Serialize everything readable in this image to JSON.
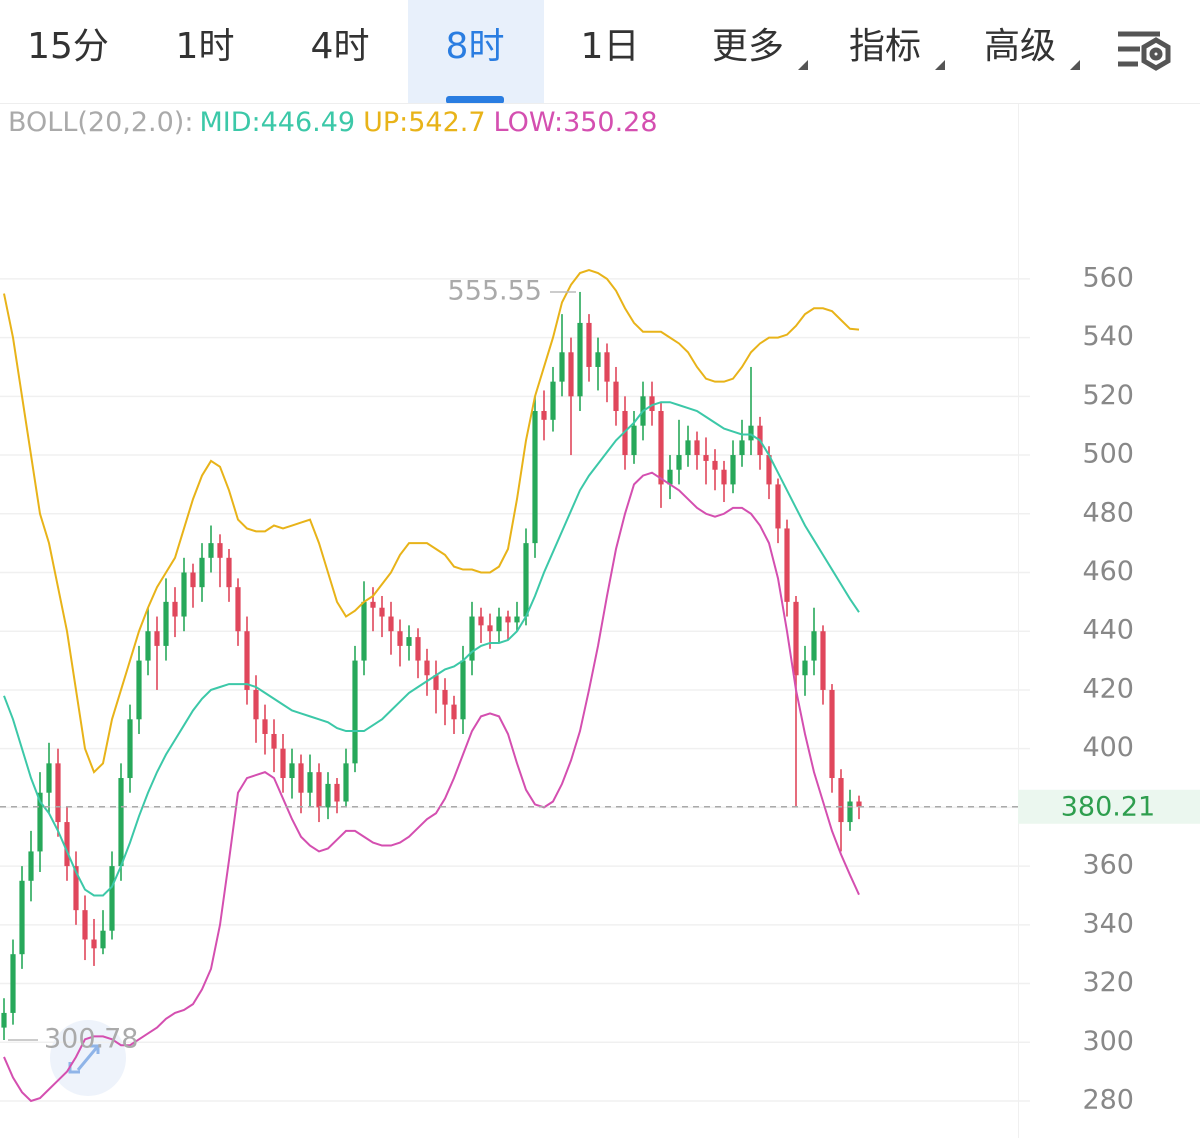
{
  "tabs": [
    "15分",
    "1时",
    "4时",
    "8时",
    "1日",
    "更多",
    "指标",
    "高级"
  ],
  "selected_tab": 3,
  "chart_data": {
    "type": "candlestick",
    "indicator": "BOLL(20,2.0):",
    "up_color": "#27a85a",
    "down_color": "#e0475c",
    "ylim": [
      267.4,
      619.9
    ],
    "yticks": [
      280,
      300,
      320,
      340,
      360,
      380,
      400,
      420,
      440,
      460,
      480,
      500,
      520,
      540,
      560
    ],
    "grid": true,
    "candles": [
      [
        305,
        315,
        300.78,
        310
      ],
      [
        310,
        335,
        306,
        330
      ],
      [
        330,
        360,
        325,
        355
      ],
      [
        355,
        372,
        348,
        365
      ],
      [
        365,
        392,
        358,
        385
      ],
      [
        385,
        402,
        378,
        395
      ],
      [
        395,
        400,
        370,
        375
      ],
      [
        375,
        380,
        355,
        360
      ],
      [
        360,
        365,
        340,
        345
      ],
      [
        345,
        350,
        328,
        335
      ],
      [
        335,
        342,
        326,
        332
      ],
      [
        332,
        345,
        330,
        338
      ],
      [
        338,
        365,
        335,
        360
      ],
      [
        360,
        395,
        355,
        390
      ],
      [
        390,
        415,
        385,
        410
      ],
      [
        410,
        435,
        405,
        430
      ],
      [
        430,
        448,
        425,
        440
      ],
      [
        440,
        445,
        420,
        435
      ],
      [
        435,
        458,
        430,
        450
      ],
      [
        450,
        455,
        438,
        445
      ],
      [
        445,
        465,
        440,
        460
      ],
      [
        460,
        463,
        448,
        455
      ],
      [
        455,
        470,
        450,
        465
      ],
      [
        465,
        476,
        460,
        470
      ],
      [
        470,
        473,
        455,
        465
      ],
      [
        465,
        468,
        450,
        455
      ],
      [
        455,
        458,
        435,
        440
      ],
      [
        440,
        445,
        415,
        420
      ],
      [
        420,
        425,
        402,
        410
      ],
      [
        410,
        415,
        398,
        405
      ],
      [
        405,
        410,
        392,
        400
      ],
      [
        400,
        405,
        385,
        390
      ],
      [
        390,
        400,
        383,
        395
      ],
      [
        395,
        398,
        378,
        385
      ],
      [
        385,
        398,
        380,
        392
      ],
      [
        392,
        395,
        375,
        380
      ],
      [
        380,
        392,
        376,
        388
      ],
      [
        388,
        390,
        378,
        382
      ],
      [
        382,
        400,
        380,
        395
      ],
      [
        395,
        435,
        392,
        430
      ],
      [
        430,
        457,
        425,
        450
      ],
      [
        450,
        455,
        440,
        448
      ],
      [
        448,
        452,
        438,
        445
      ],
      [
        445,
        450,
        432,
        440
      ],
      [
        440,
        444,
        428,
        435
      ],
      [
        435,
        442,
        430,
        438
      ],
      [
        438,
        441,
        424,
        430
      ],
      [
        430,
        434,
        418,
        425
      ],
      [
        425,
        430,
        412,
        420
      ],
      [
        420,
        424,
        408,
        415
      ],
      [
        415,
        418,
        405,
        410
      ],
      [
        410,
        435,
        405,
        430
      ],
      [
        430,
        450,
        425,
        445
      ],
      [
        445,
        448,
        436,
        442
      ],
      [
        442,
        446,
        434,
        440
      ],
      [
        440,
        448,
        436,
        445
      ],
      [
        445,
        447,
        437,
        443
      ],
      [
        443,
        450,
        440,
        445
      ],
      [
        445,
        475,
        442,
        470
      ],
      [
        470,
        520,
        465,
        515
      ],
      [
        515,
        522,
        505,
        512
      ],
      [
        512,
        530,
        508,
        525
      ],
      [
        525,
        548,
        520,
        535
      ],
      [
        535,
        540,
        500,
        520
      ],
      [
        520,
        555.55,
        515,
        545
      ],
      [
        545,
        548,
        525,
        530
      ],
      [
        530,
        540,
        522,
        535
      ],
      [
        535,
        538,
        518,
        525
      ],
      [
        525,
        530,
        510,
        515
      ],
      [
        515,
        520,
        495,
        500
      ],
      [
        500,
        515,
        497,
        510
      ],
      [
        510,
        525,
        505,
        520
      ],
      [
        520,
        525,
        510,
        515
      ],
      [
        515,
        518,
        482,
        490
      ],
      [
        490,
        500,
        485,
        495
      ],
      [
        495,
        512,
        490,
        500
      ],
      [
        500,
        510,
        496,
        505
      ],
      [
        505,
        508,
        495,
        500
      ],
      [
        500,
        506,
        490,
        498
      ],
      [
        498,
        502,
        488,
        495
      ],
      [
        495,
        498,
        484,
        490
      ],
      [
        490,
        505,
        487,
        500
      ],
      [
        500,
        512,
        496,
        505
      ],
      [
        505,
        530,
        500,
        510
      ],
      [
        510,
        513,
        495,
        500
      ],
      [
        500,
        503,
        485,
        490
      ],
      [
        490,
        492,
        470,
        475
      ],
      [
        475,
        478,
        445,
        450
      ],
      [
        450,
        452,
        380,
        425
      ],
      [
        425,
        435,
        418,
        430
      ],
      [
        430,
        448,
        425,
        440
      ],
      [
        440,
        442,
        415,
        420
      ],
      [
        420,
        422,
        385,
        390
      ],
      [
        390,
        393,
        365,
        375
      ],
      [
        375,
        386,
        372,
        382
      ],
      [
        382,
        384,
        376,
        380.21
      ]
    ],
    "series": [
      {
        "name": "MID:",
        "color": "#3cc8a8",
        "values": [
          418,
          410,
          400,
          390,
          382,
          378,
          372,
          365,
          358,
          352,
          350,
          350,
          353,
          360,
          368,
          377,
          385,
          392,
          398,
          403,
          408,
          413,
          417,
          420,
          421,
          422,
          422,
          422,
          421,
          419,
          417,
          415,
          413,
          412,
          411,
          410,
          409,
          407,
          406,
          406,
          406,
          408,
          410,
          413,
          416,
          419,
          421,
          423,
          425,
          427,
          428,
          430,
          433,
          435,
          436,
          436,
          437,
          440,
          445,
          452,
          460,
          467,
          474,
          481,
          488,
          493,
          497,
          501,
          505,
          508,
          511,
          515,
          517,
          518,
          518,
          517,
          516,
          515,
          513,
          511,
          509,
          508,
          507,
          507,
          505,
          500,
          494,
          488,
          482,
          476,
          471,
          466,
          461,
          456,
          451,
          446.49
        ]
      },
      {
        "name": "UP:",
        "color": "#e8b319",
        "values": [
          555,
          540,
          520,
          500,
          480,
          470,
          455,
          440,
          420,
          400,
          392,
          395,
          410,
          420,
          430,
          440,
          448,
          455,
          460,
          465,
          475,
          485,
          493,
          498,
          496,
          488,
          478,
          475,
          474,
          474,
          476,
          475,
          476,
          477,
          478,
          470,
          460,
          450,
          445,
          447,
          450,
          452,
          456,
          460,
          466,
          470,
          470,
          470,
          468,
          466,
          462,
          461,
          461,
          460,
          460,
          462,
          468,
          485,
          505,
          520,
          530,
          540,
          552,
          558,
          562,
          563,
          562,
          560,
          556,
          550,
          545,
          542,
          542,
          542,
          540,
          538,
          535,
          530,
          526,
          525,
          525,
          526,
          530,
          535,
          538,
          540,
          540,
          541,
          544,
          548,
          550,
          550,
          549,
          546,
          543,
          542.7
        ]
      },
      {
        "name": "LOW:",
        "color": "#d44fb0",
        "values": [
          295,
          288,
          283,
          280,
          281,
          284,
          287,
          290,
          295,
          301,
          302,
          302,
          301,
          299,
          299,
          301,
          303,
          305,
          308,
          310,
          311,
          313,
          318,
          325,
          340,
          362,
          385,
          390,
          391,
          392,
          390,
          383,
          376,
          370,
          367,
          365,
          366,
          369,
          372,
          372,
          370,
          368,
          367,
          367,
          368,
          370,
          373,
          376,
          378,
          383,
          390,
          398,
          406,
          411,
          412,
          411,
          405,
          395,
          386,
          381,
          380,
          382,
          388,
          396,
          406,
          420,
          435,
          452,
          468,
          480,
          490,
          493,
          494,
          492,
          490,
          488,
          485,
          482,
          480,
          479,
          480,
          482,
          482,
          480,
          476,
          470,
          458,
          440,
          420,
          405,
          392,
          382,
          372,
          364,
          357,
          350.28
        ]
      }
    ]
  }
}
